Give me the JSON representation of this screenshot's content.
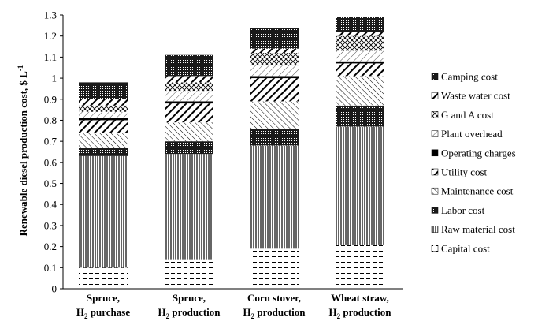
{
  "chart_data": {
    "type": "bar",
    "stacked": true,
    "ylabel": "Renewable diesel production cost, $ L",
    "ylabel_superscript": "-1",
    "ylim": [
      0,
      1.3
    ],
    "ytick_step": 0.1,
    "yticks": [
      "0",
      "0.1",
      "0.2",
      "0.3",
      "0.4",
      "0.5",
      "0.6",
      "0.7",
      "0.8",
      "0.9",
      "1",
      "1.1",
      "1.2",
      "1.3"
    ],
    "grid": false,
    "legend_position": "right",
    "categories": [
      {
        "line1": "Spruce,",
        "line2_prefix": "H",
        "line2_sub": "2",
        "line2_suffix": " purchase"
      },
      {
        "line1": "Spruce,",
        "line2_prefix": "H",
        "line2_sub": "2",
        "line2_suffix": " production"
      },
      {
        "line1": "Corn stover,",
        "line2_prefix": "H",
        "line2_sub": "2",
        "line2_suffix": " production"
      },
      {
        "line1": "Wheat straw,",
        "line2_prefix": "H",
        "line2_sub": "2",
        "line2_suffix": " production"
      }
    ],
    "series": [
      {
        "name": "Capital cost",
        "values": [
          0.1,
          0.14,
          0.19,
          0.21
        ],
        "pattern": "dash"
      },
      {
        "name": "Raw material cost",
        "values": [
          0.53,
          0.5,
          0.49,
          0.56
        ],
        "pattern": "vlines"
      },
      {
        "name": "Labor cost",
        "values": [
          0.04,
          0.06,
          0.08,
          0.1
        ],
        "pattern": "dots"
      },
      {
        "name": "Maintenance cost",
        "values": [
          0.07,
          0.09,
          0.13,
          0.14
        ],
        "pattern": "thin-diag"
      },
      {
        "name": "Utility cost",
        "values": [
          0.06,
          0.09,
          0.11,
          0.06
        ],
        "pattern": "thick-diag"
      },
      {
        "name": "Operating charges",
        "values": [
          0.01,
          0.01,
          0.01,
          0.01
        ],
        "pattern": "solid"
      },
      {
        "name": "Plant overhead",
        "values": [
          0.03,
          0.05,
          0.05,
          0.05
        ],
        "pattern": "light-diag"
      },
      {
        "name": "G and A cost",
        "values": [
          0.03,
          0.04,
          0.06,
          0.07
        ],
        "pattern": "crosshatch"
      },
      {
        "name": "Waste water cost",
        "values": [
          0.03,
          0.03,
          0.02,
          0.02
        ],
        "pattern": "thick-diag"
      },
      {
        "name": "Camping cost",
        "values": [
          0.08,
          0.1,
          0.1,
          0.07
        ],
        "pattern": "dots"
      }
    ]
  }
}
